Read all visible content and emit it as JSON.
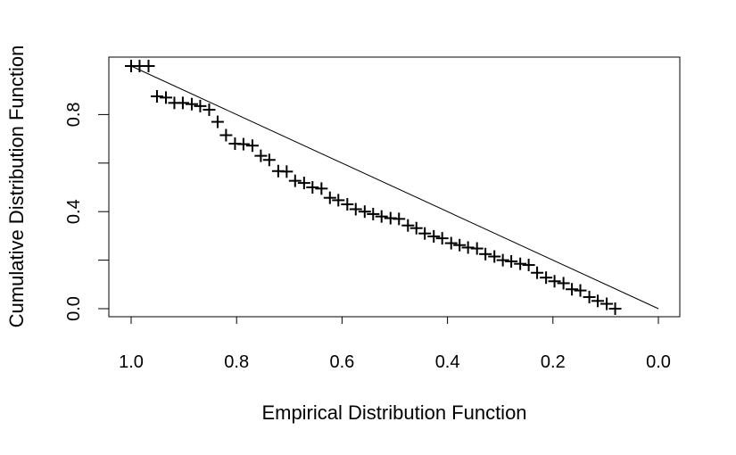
{
  "chart_data": {
    "type": "scatter",
    "title": "",
    "xlabel": "Empirical Distribution Function",
    "ylabel": "Cumulative Distribution Function",
    "xlim": [
      1.0,
      0.0
    ],
    "ylim": [
      -0.03,
      1.03
    ],
    "x_reversed": true,
    "grid": false,
    "legend": "none",
    "marker": "plus",
    "x_ticks": [
      "1.0",
      "0.8",
      "0.6",
      "0.4",
      "0.2",
      "0.0"
    ],
    "y_ticks": [
      "0.0",
      "0.4",
      "0.8"
    ],
    "reference_line": {
      "from": [
        0.0,
        0.0
      ],
      "to": [
        1.0,
        1.0
      ]
    },
    "points": [
      [
        1.0,
        1.0
      ],
      [
        0.984,
        1.0
      ],
      [
        0.967,
        1.0
      ],
      [
        0.951,
        0.875
      ],
      [
        0.934,
        0.87
      ],
      [
        0.918,
        0.848
      ],
      [
        0.902,
        0.848
      ],
      [
        0.885,
        0.843
      ],
      [
        0.869,
        0.835
      ],
      [
        0.852,
        0.82
      ],
      [
        0.836,
        0.77
      ],
      [
        0.82,
        0.715
      ],
      [
        0.803,
        0.68
      ],
      [
        0.787,
        0.678
      ],
      [
        0.77,
        0.672
      ],
      [
        0.754,
        0.63
      ],
      [
        0.738,
        0.613
      ],
      [
        0.721,
        0.567
      ],
      [
        0.705,
        0.565
      ],
      [
        0.689,
        0.527
      ],
      [
        0.672,
        0.518
      ],
      [
        0.656,
        0.5
      ],
      [
        0.639,
        0.495
      ],
      [
        0.623,
        0.457
      ],
      [
        0.607,
        0.447
      ],
      [
        0.59,
        0.43
      ],
      [
        0.574,
        0.41
      ],
      [
        0.557,
        0.4
      ],
      [
        0.541,
        0.39
      ],
      [
        0.525,
        0.38
      ],
      [
        0.508,
        0.373
      ],
      [
        0.492,
        0.37
      ],
      [
        0.475,
        0.343
      ],
      [
        0.459,
        0.332
      ],
      [
        0.443,
        0.31
      ],
      [
        0.426,
        0.298
      ],
      [
        0.41,
        0.29
      ],
      [
        0.393,
        0.27
      ],
      [
        0.377,
        0.262
      ],
      [
        0.361,
        0.252
      ],
      [
        0.344,
        0.248
      ],
      [
        0.328,
        0.225
      ],
      [
        0.311,
        0.215
      ],
      [
        0.295,
        0.2
      ],
      [
        0.279,
        0.195
      ],
      [
        0.262,
        0.185
      ],
      [
        0.246,
        0.18
      ],
      [
        0.23,
        0.148
      ],
      [
        0.213,
        0.128
      ],
      [
        0.197,
        0.113
      ],
      [
        0.18,
        0.105
      ],
      [
        0.164,
        0.08
      ],
      [
        0.148,
        0.075
      ],
      [
        0.131,
        0.048
      ],
      [
        0.115,
        0.032
      ],
      [
        0.098,
        0.02
      ],
      [
        0.082,
        0.0
      ]
    ]
  }
}
